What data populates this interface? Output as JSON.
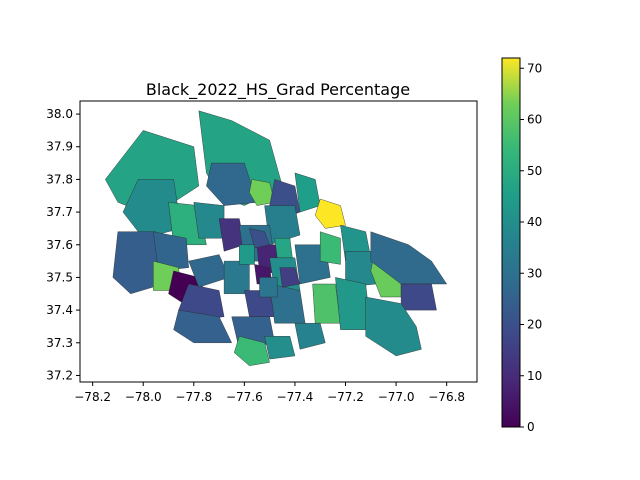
{
  "chart_data": {
    "type": "choropleth",
    "title": "Black_2022_HS_Grad Percentage",
    "xlabel": "",
    "ylabel": "",
    "xlim": [
      -78.25,
      -76.68
    ],
    "ylim": [
      37.18,
      38.04
    ],
    "x_ticks": [
      -78.2,
      -78.0,
      -77.8,
      -77.6,
      -77.4,
      -77.2,
      -77.0,
      -76.8
    ],
    "x_tick_labels": [
      "−78.2",
      "−78.0",
      "−77.8",
      "−77.6",
      "−77.4",
      "−77.2",
      "−77.0",
      "−76.8"
    ],
    "y_ticks": [
      37.2,
      37.3,
      37.4,
      37.5,
      37.6,
      37.7,
      37.8,
      37.9,
      38.0
    ],
    "y_tick_labels": [
      "37.2",
      "37.3",
      "37.4",
      "37.5",
      "37.6",
      "37.7",
      "37.8",
      "37.9",
      "38.0"
    ],
    "colormap": "viridis",
    "color_range": [
      0,
      72
    ],
    "colorbar_ticks": [
      0,
      10,
      20,
      30,
      40,
      50,
      60,
      70
    ],
    "colorbar_tick_labels": [
      "0",
      "10",
      "20",
      "30",
      "40",
      "50",
      "60",
      "70"
    ],
    "grid": false,
    "regions": [
      {
        "value": 47,
        "poly": [
          [
            -78.0,
            37.95
          ],
          [
            -77.8,
            37.9
          ],
          [
            -77.78,
            37.78
          ],
          [
            -77.9,
            37.72
          ],
          [
            -78.0,
            37.7
          ],
          [
            -78.1,
            37.73
          ],
          [
            -78.15,
            37.8
          ]
        ]
      },
      {
        "value": 39,
        "poly": [
          [
            -78.02,
            37.8
          ],
          [
            -77.88,
            37.8
          ],
          [
            -77.85,
            37.65
          ],
          [
            -78.0,
            37.62
          ],
          [
            -78.08,
            37.7
          ]
        ]
      },
      {
        "value": 47,
        "poly": [
          [
            -77.78,
            38.01
          ],
          [
            -77.65,
            37.98
          ],
          [
            -77.5,
            37.92
          ],
          [
            -77.45,
            37.78
          ],
          [
            -77.6,
            37.72
          ],
          [
            -77.7,
            37.75
          ],
          [
            -77.75,
            37.82
          ]
        ]
      },
      {
        "value": 27,
        "poly": [
          [
            -77.73,
            37.85
          ],
          [
            -77.6,
            37.85
          ],
          [
            -77.55,
            37.73
          ],
          [
            -77.68,
            37.72
          ],
          [
            -77.75,
            37.78
          ]
        ]
      },
      {
        "value": 63,
        "poly": [
          [
            -77.57,
            37.8
          ],
          [
            -77.5,
            37.79
          ],
          [
            -77.48,
            37.73
          ],
          [
            -77.55,
            37.72
          ],
          [
            -77.58,
            37.76
          ]
        ]
      },
      {
        "value": 20,
        "poly": [
          [
            -77.48,
            37.8
          ],
          [
            -77.4,
            37.78
          ],
          [
            -77.38,
            37.7
          ],
          [
            -77.45,
            37.68
          ],
          [
            -77.5,
            37.72
          ]
        ]
      },
      {
        "value": 35,
        "poly": [
          [
            -77.52,
            37.72
          ],
          [
            -77.4,
            37.72
          ],
          [
            -77.38,
            37.63
          ],
          [
            -77.5,
            37.6
          ]
        ]
      },
      {
        "value": 45,
        "poly": [
          [
            -77.4,
            37.82
          ],
          [
            -77.32,
            37.8
          ],
          [
            -77.3,
            37.72
          ],
          [
            -77.38,
            37.7
          ]
        ]
      },
      {
        "value": 72,
        "poly": [
          [
            -77.3,
            37.74
          ],
          [
            -77.22,
            37.72
          ],
          [
            -77.2,
            37.66
          ],
          [
            -77.28,
            37.65
          ],
          [
            -77.32,
            37.69
          ]
        ]
      },
      {
        "value": 51,
        "poly": [
          [
            -77.9,
            37.73
          ],
          [
            -77.78,
            37.72
          ],
          [
            -77.75,
            37.6
          ],
          [
            -77.88,
            37.6
          ]
        ]
      },
      {
        "value": 38,
        "poly": [
          [
            -77.8,
            37.73
          ],
          [
            -77.68,
            37.72
          ],
          [
            -77.68,
            37.62
          ],
          [
            -77.78,
            37.62
          ]
        ]
      },
      {
        "value": 24,
        "poly": [
          [
            -78.1,
            37.64
          ],
          [
            -77.95,
            37.64
          ],
          [
            -77.92,
            37.48
          ],
          [
            -78.05,
            37.45
          ],
          [
            -78.12,
            37.5
          ]
        ]
      },
      {
        "value": 26,
        "poly": [
          [
            -77.96,
            37.64
          ],
          [
            -77.83,
            37.62
          ],
          [
            -77.82,
            37.53
          ],
          [
            -77.94,
            37.52
          ]
        ]
      },
      {
        "value": 63,
        "poly": [
          [
            -77.96,
            37.55
          ],
          [
            -77.86,
            37.53
          ],
          [
            -77.85,
            37.46
          ],
          [
            -77.96,
            37.46
          ]
        ]
      },
      {
        "value": 0,
        "poly": [
          [
            -77.88,
            37.52
          ],
          [
            -77.78,
            37.5
          ],
          [
            -77.74,
            37.42
          ],
          [
            -77.82,
            37.41
          ],
          [
            -77.9,
            37.45
          ]
        ]
      },
      {
        "value": 18,
        "poly": [
          [
            -77.82,
            37.48
          ],
          [
            -77.7,
            37.46
          ],
          [
            -77.68,
            37.38
          ],
          [
            -77.78,
            37.37
          ],
          [
            -77.86,
            37.4
          ]
        ]
      },
      {
        "value": 25,
        "poly": [
          [
            -77.86,
            37.4
          ],
          [
            -77.7,
            37.38
          ],
          [
            -77.65,
            37.3
          ],
          [
            -77.8,
            37.3
          ],
          [
            -77.88,
            37.34
          ]
        ]
      },
      {
        "value": 27,
        "poly": [
          [
            -77.82,
            37.55
          ],
          [
            -77.7,
            37.57
          ],
          [
            -77.66,
            37.5
          ],
          [
            -77.78,
            37.47
          ]
        ]
      },
      {
        "value": 33,
        "poly": [
          [
            -77.68,
            37.55
          ],
          [
            -77.58,
            37.55
          ],
          [
            -77.58,
            37.45
          ],
          [
            -77.68,
            37.45
          ]
        ]
      },
      {
        "value": 12,
        "poly": [
          [
            -77.7,
            37.68
          ],
          [
            -77.62,
            37.68
          ],
          [
            -77.6,
            37.6
          ],
          [
            -77.68,
            37.58
          ]
        ]
      },
      {
        "value": 30,
        "poly": [
          [
            -77.62,
            37.66
          ],
          [
            -77.5,
            37.66
          ],
          [
            -77.48,
            37.55
          ],
          [
            -77.6,
            37.55
          ]
        ]
      },
      {
        "value": 8,
        "poly": [
          [
            -77.55,
            37.6
          ],
          [
            -77.46,
            37.6
          ],
          [
            -77.44,
            37.52
          ],
          [
            -77.54,
            37.51
          ]
        ]
      },
      {
        "value": 40,
        "poly": [
          [
            -77.5,
            37.56
          ],
          [
            -77.4,
            37.56
          ],
          [
            -77.38,
            37.46
          ],
          [
            -77.48,
            37.46
          ]
        ]
      },
      {
        "value": 18,
        "poly": [
          [
            -77.6,
            37.46
          ],
          [
            -77.5,
            37.46
          ],
          [
            -77.48,
            37.38
          ],
          [
            -77.58,
            37.38
          ]
        ]
      },
      {
        "value": 30,
        "poly": [
          [
            -77.5,
            37.48
          ],
          [
            -77.38,
            37.46
          ],
          [
            -77.36,
            37.36
          ],
          [
            -77.48,
            37.36
          ]
        ]
      },
      {
        "value": 25,
        "poly": [
          [
            -77.65,
            37.38
          ],
          [
            -77.5,
            37.38
          ],
          [
            -77.48,
            37.3
          ],
          [
            -77.62,
            37.28
          ]
        ]
      },
      {
        "value": 55,
        "poly": [
          [
            -77.62,
            37.32
          ],
          [
            -77.52,
            37.3
          ],
          [
            -77.5,
            37.24
          ],
          [
            -77.58,
            37.23
          ],
          [
            -77.64,
            37.27
          ]
        ]
      },
      {
        "value": 40,
        "poly": [
          [
            -77.52,
            37.32
          ],
          [
            -77.42,
            37.32
          ],
          [
            -77.4,
            37.26
          ],
          [
            -77.5,
            37.25
          ]
        ]
      },
      {
        "value": 30,
        "poly": [
          [
            -77.4,
            37.6
          ],
          [
            -77.28,
            37.6
          ],
          [
            -77.26,
            37.5
          ],
          [
            -77.38,
            37.48
          ]
        ]
      },
      {
        "value": 55,
        "poly": [
          [
            -77.3,
            37.64
          ],
          [
            -77.22,
            37.62
          ],
          [
            -77.22,
            37.54
          ],
          [
            -77.3,
            37.55
          ]
        ]
      },
      {
        "value": 42,
        "poly": [
          [
            -77.22,
            37.66
          ],
          [
            -77.12,
            37.64
          ],
          [
            -77.1,
            37.56
          ],
          [
            -77.2,
            37.55
          ]
        ]
      },
      {
        "value": 38,
        "poly": [
          [
            -77.2,
            37.58
          ],
          [
            -77.1,
            37.58
          ],
          [
            -77.08,
            37.48
          ],
          [
            -77.2,
            37.47
          ]
        ]
      },
      {
        "value": 58,
        "poly": [
          [
            -77.33,
            37.48
          ],
          [
            -77.24,
            37.48
          ],
          [
            -77.22,
            37.36
          ],
          [
            -77.32,
            37.36
          ]
        ]
      },
      {
        "value": 43,
        "poly": [
          [
            -77.24,
            37.5
          ],
          [
            -77.12,
            37.48
          ],
          [
            -77.1,
            37.34
          ],
          [
            -77.22,
            37.34
          ]
        ]
      },
      {
        "value": 62,
        "poly": [
          [
            -77.08,
            37.6
          ],
          [
            -76.98,
            37.6
          ],
          [
            -76.98,
            37.44
          ],
          [
            -77.06,
            37.44
          ],
          [
            -77.1,
            37.52
          ]
        ]
      },
      {
        "value": 28,
        "poly": [
          [
            -77.1,
            37.64
          ],
          [
            -76.95,
            37.6
          ],
          [
            -76.86,
            37.55
          ],
          [
            -76.8,
            37.48
          ],
          [
            -76.98,
            37.48
          ],
          [
            -77.1,
            37.55
          ]
        ]
      },
      {
        "value": 18,
        "poly": [
          [
            -76.98,
            37.48
          ],
          [
            -76.86,
            37.48
          ],
          [
            -76.84,
            37.4
          ],
          [
            -76.98,
            37.4
          ]
        ]
      },
      {
        "value": 39,
        "poly": [
          [
            -77.12,
            37.44
          ],
          [
            -76.98,
            37.42
          ],
          [
            -76.92,
            37.35
          ],
          [
            -76.9,
            37.28
          ],
          [
            -77.0,
            37.26
          ],
          [
            -77.12,
            37.32
          ]
        ]
      },
      {
        "value": 36,
        "poly": [
          [
            -77.4,
            37.36
          ],
          [
            -77.3,
            37.36
          ],
          [
            -77.28,
            37.3
          ],
          [
            -77.38,
            37.28
          ]
        ]
      },
      {
        "value": 20,
        "poly": [
          [
            -77.58,
            37.65
          ],
          [
            -77.52,
            37.64
          ],
          [
            -77.5,
            37.6
          ],
          [
            -77.56,
            37.59
          ]
        ]
      },
      {
        "value": 48,
        "poly": [
          [
            -77.48,
            37.62
          ],
          [
            -77.42,
            37.62
          ],
          [
            -77.41,
            37.56
          ],
          [
            -77.47,
            37.56
          ]
        ]
      },
      {
        "value": 5,
        "poly": [
          [
            -77.56,
            37.54
          ],
          [
            -77.5,
            37.53
          ],
          [
            -77.49,
            37.48
          ],
          [
            -77.55,
            37.48
          ]
        ]
      },
      {
        "value": 15,
        "poly": [
          [
            -77.46,
            37.53
          ],
          [
            -77.4,
            37.53
          ],
          [
            -77.38,
            37.48
          ],
          [
            -77.45,
            37.47
          ]
        ]
      },
      {
        "value": 44,
        "poly": [
          [
            -77.62,
            37.6
          ],
          [
            -77.56,
            37.6
          ],
          [
            -77.56,
            37.54
          ],
          [
            -77.62,
            37.54
          ]
        ]
      },
      {
        "value": 32,
        "poly": [
          [
            -77.54,
            37.5
          ],
          [
            -77.47,
            37.5
          ],
          [
            -77.47,
            37.44
          ],
          [
            -77.54,
            37.44
          ]
        ]
      }
    ]
  }
}
